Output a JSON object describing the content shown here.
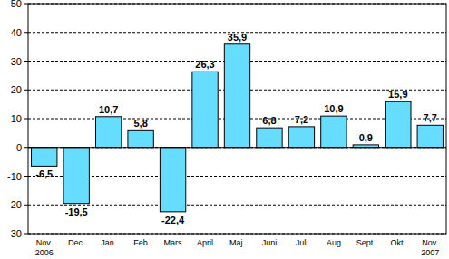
{
  "chart_data": {
    "type": "bar",
    "categories": [
      "Nov.\n2006",
      "Dec.",
      "Jan.",
      "Feb",
      "Mars",
      "April",
      "Maj.",
      "Juni",
      "Juli",
      "Aug",
      "Sept.",
      "Okt.",
      "Nov.\n2007"
    ],
    "values": [
      -6.5,
      -19.5,
      10.7,
      5.8,
      -22.4,
      26.3,
      35.9,
      6.8,
      7.2,
      10.9,
      0.9,
      15.9,
      7.7
    ],
    "value_labels": [
      "-6,5",
      "-19,5",
      "10,7",
      "5,8",
      "-22,4",
      "26,3",
      "35,9",
      "6,8",
      "7,2",
      "10,9",
      "0,9",
      "15,9",
      "7,7"
    ],
    "color": "#66ddff",
    "ylim": [
      -30,
      50
    ],
    "yticks": [
      -30,
      -20,
      -10,
      0,
      10,
      20,
      30,
      40,
      50
    ],
    "grid": true,
    "data_labels": true
  }
}
